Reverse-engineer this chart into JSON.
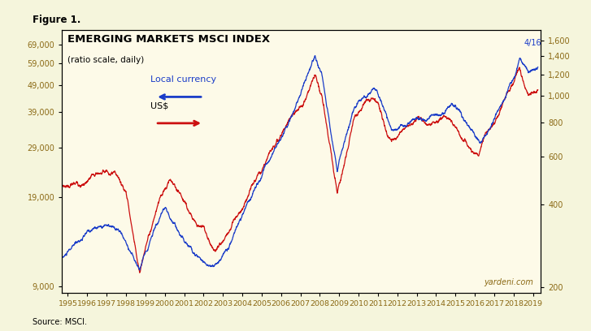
{
  "title_fig": "Figure 1.",
  "title_main": "EMERGING MARKETS MSCI INDEX",
  "subtitle": "(ratio scale, daily)",
  "background_color": "#FDFAE8",
  "fig_background": "#F5F5DC",
  "blue_color": "#1A3CC8",
  "red_color": "#CC1010",
  "annotation_text": "4/16",
  "source_text": "Source: MSCI.",
  "yardeni_text": "yardeni.com",
  "left_yticks": [
    9000,
    19000,
    29000,
    39000,
    49000,
    59000,
    69000
  ],
  "right_yticks": [
    200,
    400,
    600,
    800,
    1000,
    1200,
    1400,
    1600
  ],
  "ylim_left": [
    8500,
    78000
  ],
  "ylim_right": [
    190,
    1750
  ],
  "xmin": 1994.7,
  "xmax": 2019.4,
  "legend_local": "Local currency",
  "legend_usd": "US$"
}
